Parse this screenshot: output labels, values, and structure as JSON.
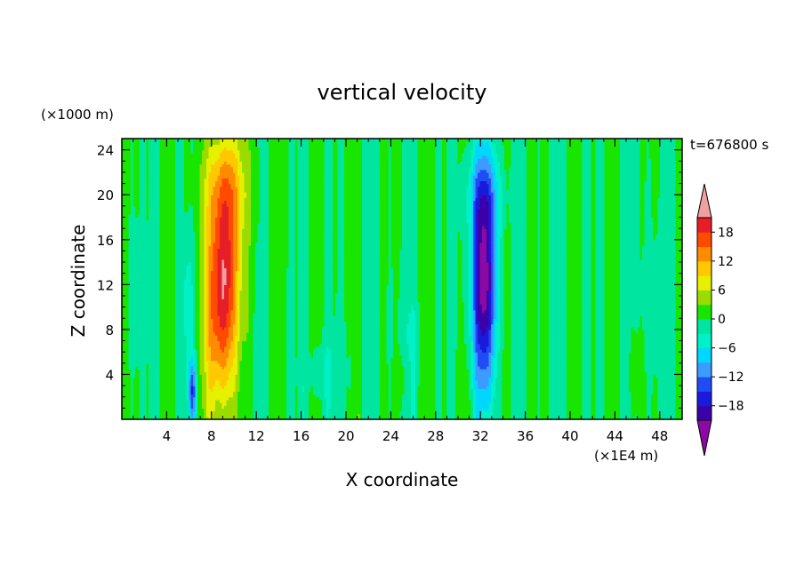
{
  "chart_data": {
    "type": "heatmap",
    "title": "vertical velocity",
    "xlabel": "X coordinate",
    "ylabel": "Z coordinate",
    "x_unit": "(×1E4 m)",
    "y_unit": "(×1000 m)",
    "time_label": "t=676800 s",
    "xlim": [
      0,
      50
    ],
    "ylim": [
      0,
      25
    ],
    "x_ticks": [
      4,
      8,
      12,
      16,
      20,
      24,
      28,
      32,
      36,
      40,
      44,
      48
    ],
    "y_ticks": [
      4,
      8,
      12,
      16,
      20,
      24
    ],
    "colorbar": {
      "levels": [
        -21,
        -18,
        -15,
        -12,
        -9,
        -6,
        -3,
        0,
        3,
        6,
        9,
        12,
        15,
        18,
        21
      ],
      "tick_values": [
        -18,
        -12,
        -6,
        0,
        6,
        12,
        18
      ],
      "colors": [
        "#8b0aa5",
        "#3c00a8",
        "#1a1adc",
        "#1f4cf5",
        "#3c9bff",
        "#00d7ff",
        "#00f0c8",
        "#00e6a0",
        "#19e600",
        "#9bdc00",
        "#e6f000",
        "#ffc800",
        "#ff8c00",
        "#ff4b00",
        "#e61e28",
        "#f0a0a0"
      ],
      "extend": "both"
    },
    "features": [
      {
        "name": "updraft",
        "x_center": 9.0,
        "z_range": [
          0.3,
          24.5
        ],
        "max": 21
      },
      {
        "name": "downdraft",
        "x_center": 32.3,
        "z_range": [
          0.3,
          23.5
        ],
        "min": -21
      },
      {
        "name": "weak downdraft",
        "x_center": 6.3,
        "z_range": [
          0.5,
          6.5
        ],
        "min": -12
      }
    ],
    "grid": false
  }
}
